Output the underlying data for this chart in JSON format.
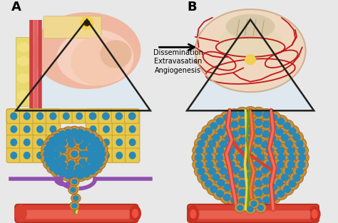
{
  "background_color": "#e8e8e8",
  "label_A": "A",
  "label_B": "B",
  "arrow_text_lines": [
    "Dissemination",
    "Extravasation",
    "Angiogenesis"
  ],
  "cell_yellow": "#e8c84a",
  "cell_body_color": "#c8903a",
  "cell_nucleus_color": "#2888b8",
  "blood_vessel_color": "#d84030",
  "vessel_wall_color": "#b83020",
  "purple_line_color": "#9050b0",
  "green_line_color": "#60a020",
  "yellow_line_color": "#e8d840",
  "brain_red": "#c01818",
  "brain_bg": "#f0d8c0",
  "breast_pink": "#f0b8a0",
  "breast_dark": "#e09080",
  "skin_yellow": "#e8c870",
  "skin_red": "#d05050"
}
